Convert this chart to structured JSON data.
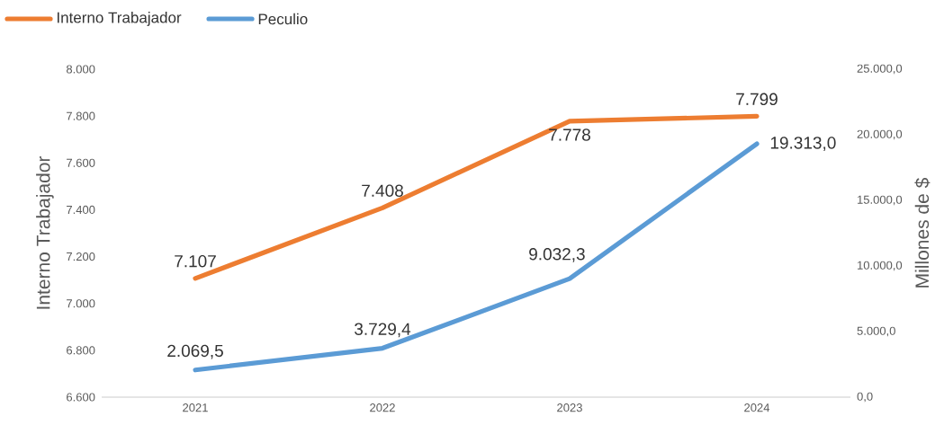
{
  "chart_data": {
    "type": "line",
    "categories": [
      "2021",
      "2022",
      "2023",
      "2024"
    ],
    "series": [
      {
        "name": "Interno Trabajador",
        "color": "#ed7d31",
        "axis": "y",
        "values": [
          7107,
          7408,
          7778,
          7799
        ],
        "value_labels": [
          "7.107",
          "7.408",
          "7.778",
          "7.799"
        ]
      },
      {
        "name": "Peculio",
        "color": "#5b9bd5",
        "axis": "y2",
        "values": [
          2069.5,
          3729.4,
          9032.3,
          19313.0
        ],
        "value_labels": [
          "2.069,5",
          "3.729,4",
          "9.032,3",
          "19.313,0"
        ]
      }
    ],
    "ylabel": "Interno Trabajador",
    "y2label": "Millones de $",
    "ylim": [
      6600,
      8000
    ],
    "yticks": [
      {
        "value": 6600,
        "label": "6.600"
      },
      {
        "value": 6800,
        "label": "6.800"
      },
      {
        "value": 7000,
        "label": "7.000"
      },
      {
        "value": 7200,
        "label": "7.200"
      },
      {
        "value": 7400,
        "label": "7.400"
      },
      {
        "value": 7600,
        "label": "7.600"
      },
      {
        "value": 7800,
        "label": "7.800"
      },
      {
        "value": 8000,
        "label": "8.000"
      }
    ],
    "y2lim": [
      0,
      25000
    ],
    "y2ticks": [
      {
        "value": 0,
        "label": "0,0"
      },
      {
        "value": 5000,
        "label": "5.000,0"
      },
      {
        "value": 10000,
        "label": "10.000,0"
      },
      {
        "value": 15000,
        "label": "15.000,0"
      },
      {
        "value": 20000,
        "label": "20.000,0"
      },
      {
        "value": 25000,
        "label": "25.000,0"
      }
    ],
    "legend": "top left",
    "line_style": "solid"
  }
}
